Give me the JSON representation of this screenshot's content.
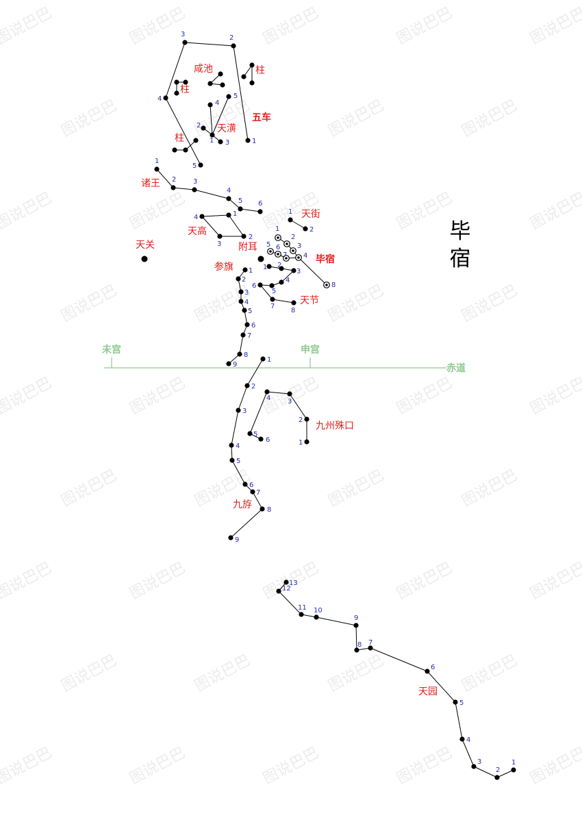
{
  "title": "毕宿",
  "watermark": "图说巴巴",
  "ecliptic": {
    "label": "赤道",
    "palaces": [
      "未宫",
      "申宫"
    ]
  },
  "colors": {
    "label_red": "#e0201c",
    "number_blue": "#1f2fb0",
    "ecliptic_green": "#8fc98f",
    "line": "#000000"
  },
  "constellations": [
    {
      "name": "五车",
      "bold": true,
      "stars": [
        "1",
        "2",
        "3",
        "4",
        "5"
      ]
    },
    {
      "name": "咸池",
      "stars": [
        "",
        "",
        ""
      ]
    },
    {
      "name": "柱",
      "stars": [
        "",
        "",
        ""
      ]
    },
    {
      "name": "柱",
      "stars": [
        "",
        "",
        ""
      ]
    },
    {
      "name": "柱",
      "stars": [
        "",
        "",
        ""
      ]
    },
    {
      "name": "天潢",
      "stars": [
        "1",
        "2",
        "3",
        "4",
        "5"
      ]
    },
    {
      "name": "诸王",
      "stars": [
        "1",
        "2",
        "3",
        "4",
        "5",
        "6"
      ]
    },
    {
      "name": "天街",
      "stars": [
        "1",
        "2"
      ]
    },
    {
      "name": "天高",
      "stars": [
        "1",
        "2",
        "3",
        "4"
      ]
    },
    {
      "name": "天关",
      "stars": [
        ""
      ]
    },
    {
      "name": "附耳",
      "stars": [
        ""
      ]
    },
    {
      "name": "毕宿",
      "bold": true,
      "stars": [
        "1",
        "2",
        "3",
        "4",
        "5",
        "6",
        "7",
        "8"
      ]
    },
    {
      "name": "天节",
      "stars": [
        "1",
        "2",
        "3",
        "4",
        "5",
        "6",
        "7",
        "8"
      ]
    },
    {
      "name": "参旗",
      "stars": [
        "1",
        "2",
        "3",
        "4",
        "5",
        "6",
        "7",
        "8",
        "9"
      ]
    },
    {
      "name": "九州殊口",
      "stars": [
        "1",
        "2",
        "3",
        "4",
        "5",
        "6"
      ]
    },
    {
      "name": "九斿",
      "stars": [
        "1",
        "2",
        "3",
        "4",
        "5",
        "6",
        "7",
        "8",
        "9"
      ]
    },
    {
      "name": "天园",
      "stars": [
        "1",
        "2",
        "3",
        "4",
        "5",
        "6",
        "7",
        "8",
        "9",
        "10",
        "11",
        "12",
        "13"
      ]
    }
  ]
}
